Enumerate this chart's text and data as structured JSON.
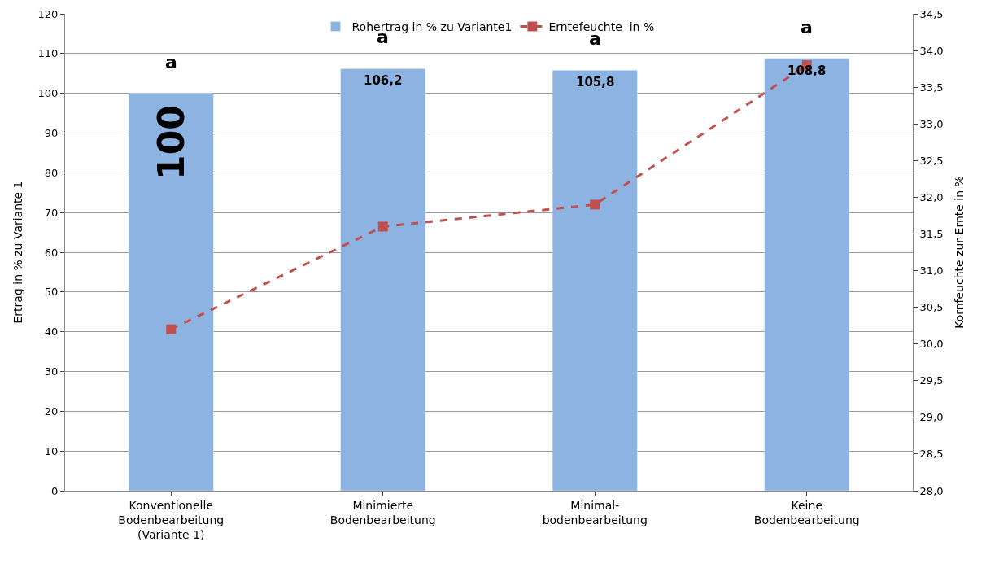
{
  "chart_data": {
    "type": "bar",
    "ylabel": "Ertrag in % zu Variante 1",
    "y2label": "Kornfeuchte zur Ernte in %",
    "categories": [
      "Konventionelle\nBodenbearbeitung\n(Variante 1)",
      "Minimierte\nBodenbearbeitung",
      "Minimal-\nbodenbearbeitung",
      "Keine\nBodenbearbeitung"
    ],
    "series": [
      {
        "name": "Rohertrag in % zu Variante1",
        "color": "#8db3e2",
        "values": [
          100,
          106.2,
          105.8,
          108.8
        ],
        "value_labels": [
          "100",
          "106,2",
          "105,8",
          "108,8"
        ]
      },
      {
        "name": "Erntefeuchte  in %",
        "type": "line",
        "axis": "y2",
        "color": "#c0504d",
        "values": [
          30.2,
          31.6,
          31.9,
          33.8
        ],
        "marker": "square",
        "line_style": "dashed"
      }
    ],
    "ylim": [
      0,
      120
    ],
    "yticks": [
      0,
      10,
      20,
      30,
      40,
      50,
      60,
      70,
      80,
      90,
      100,
      110,
      120
    ],
    "y2lim": [
      28,
      34.5
    ],
    "y2ticks": [
      {
        "value": 28,
        "label": "28,0"
      },
      {
        "value": 28.5,
        "label": "28,5"
      },
      {
        "value": 29,
        "label": "29,0"
      },
      {
        "value": 29.5,
        "label": "29,5"
      },
      {
        "value": 30,
        "label": "30,0"
      },
      {
        "value": 30.5,
        "label": "30,5"
      },
      {
        "value": 31,
        "label": "31,0"
      },
      {
        "value": 31.5,
        "label": "31,5"
      },
      {
        "value": 32,
        "label": "32,0"
      },
      {
        "value": 32.5,
        "label": "32,5"
      },
      {
        "value": 33,
        "label": "33,0"
      },
      {
        "value": 33.5,
        "label": "33,5"
      },
      {
        "value": 34,
        "label": "34,0"
      },
      {
        "value": 34.5,
        "label": "34,5"
      }
    ],
    "annotations": [
      "a",
      "a",
      "a",
      "a"
    ],
    "grid": "y",
    "legend": "top"
  }
}
